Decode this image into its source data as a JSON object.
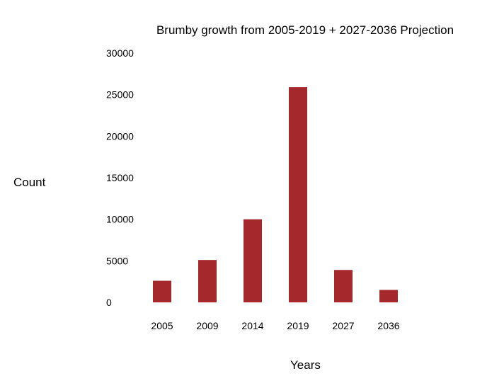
{
  "chart_data": {
    "type": "bar",
    "title": "Brumby growth from 2005-2019 + 2027-2036 Projection",
    "xlabel": "Years",
    "ylabel": "Count",
    "categories": [
      "2005",
      "2009",
      "2014",
      "2019",
      "2027",
      "2036"
    ],
    "values": [
      2600,
      5100,
      10000,
      25900,
      3900,
      1500
    ],
    "ylim": [
      0,
      30000
    ],
    "yticks": [
      "0",
      "5000",
      "10000",
      "15000",
      "20000",
      "25000",
      "30000"
    ],
    "bar_color": "#a5292c",
    "grid": false,
    "legend": "none"
  }
}
